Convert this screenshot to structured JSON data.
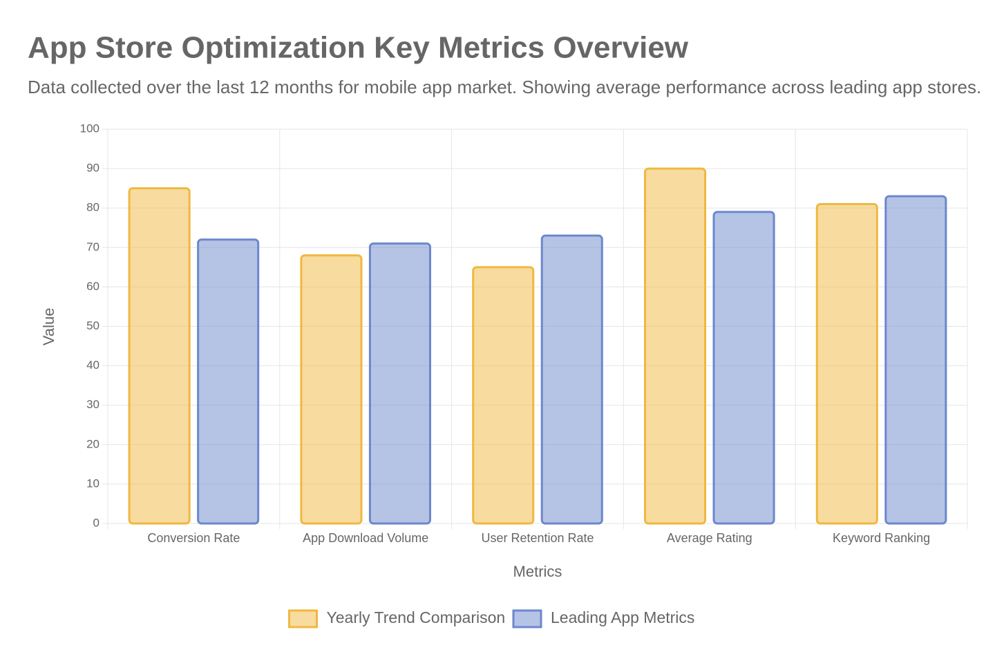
{
  "chart_data": {
    "type": "bar",
    "title": "App Store Optimization Key Metrics Overview",
    "subtitle": "Data collected over the last 12 months for mobile app market. Showing average performance across leading app stores.",
    "x_label": "Metrics",
    "y_label": "Value",
    "categories": [
      "Conversion Rate",
      "App Download Volume",
      "User Retention Rate",
      "Average Rating",
      "Keyword Ranking"
    ],
    "series": [
      {
        "name": "Yearly Trend Comparison",
        "color": "#f0b840",
        "values": [
          85,
          68,
          65,
          90,
          81
        ]
      },
      {
        "name": "Leading App Metrics",
        "color": "#6c87cc",
        "values": [
          72,
          71,
          73,
          79,
          83
        ]
      }
    ],
    "ylim": [
      0,
      100
    ],
    "yticks": [
      0,
      10,
      20,
      30,
      40,
      50,
      60,
      70,
      80,
      90,
      100
    ],
    "grid": true,
    "legend": "bottom"
  }
}
